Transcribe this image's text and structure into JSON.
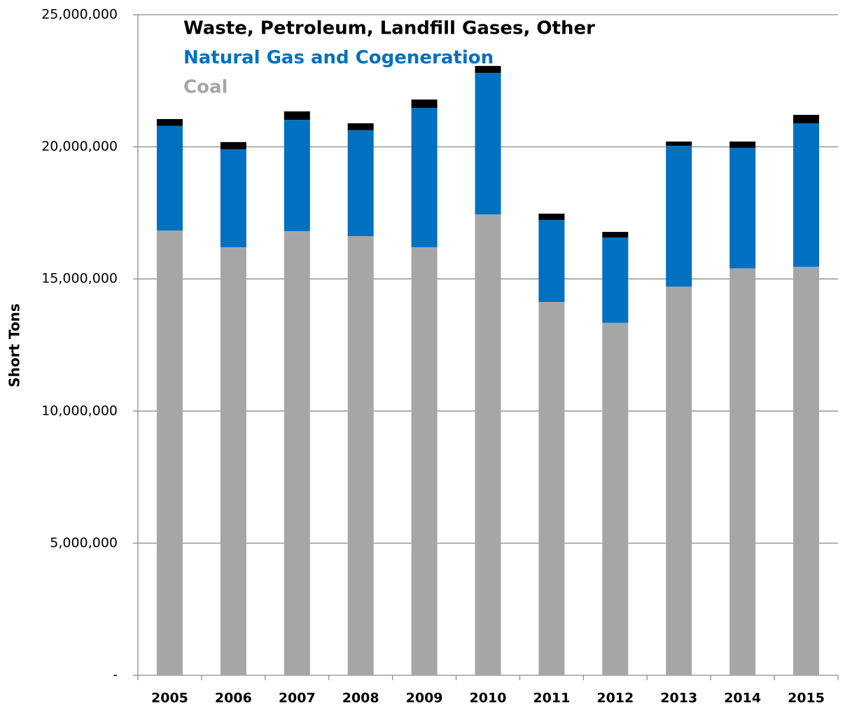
{
  "chart_data": {
    "type": "bar",
    "stacked": true,
    "y_label": "Short Tons",
    "categories": [
      "2005",
      "2006",
      "2007",
      "2008",
      "2009",
      "2010",
      "2011",
      "2012",
      "2013",
      "2014",
      "2015"
    ],
    "series": [
      {
        "name": "Coal",
        "color": "#a6a6a6",
        "values": [
          16830000,
          16200000,
          16810000,
          16620000,
          16200000,
          17440000,
          14130000,
          13340000,
          14710000,
          15400000,
          15460000
        ]
      },
      {
        "name": "Natural Gas and Cogeneration",
        "color": "#0070c0",
        "values": [
          3960000,
          3710000,
          4210000,
          4010000,
          5270000,
          5360000,
          3100000,
          3230000,
          5330000,
          4560000,
          5430000
        ]
      },
      {
        "name": "Waste, Petroleum, Landfill Gases, Other",
        "color": "#000000",
        "values": [
          260000,
          270000,
          320000,
          260000,
          320000,
          260000,
          240000,
          210000,
          160000,
          240000,
          320000
        ]
      }
    ],
    "ylim": [
      0,
      25000000
    ],
    "yticks": [
      {
        "value": 0,
        "label": "-"
      },
      {
        "value": 5000000,
        "label": "5,000,000"
      },
      {
        "value": 10000000,
        "label": "10,000,000"
      },
      {
        "value": 15000000,
        "label": "15,000,000"
      },
      {
        "value": 20000000,
        "label": "20,000,000"
      },
      {
        "value": 25000000,
        "label": "25,000,000"
      }
    ],
    "grid": true
  }
}
